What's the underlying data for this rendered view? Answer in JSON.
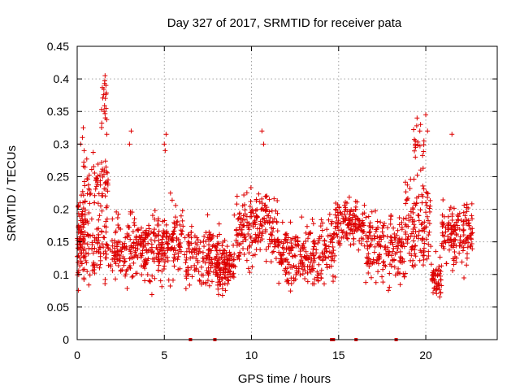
{
  "chart_data": {
    "type": "scatter",
    "title": "Day 327 of 2017, SRMTID for receiver pata",
    "xlabel": "GPS time / hours",
    "ylabel": "SRMTID / TECUs",
    "xlim": [
      0,
      24.1
    ],
    "ylim": [
      0,
      0.45
    ],
    "xticks": [
      0,
      5,
      10,
      15,
      20
    ],
    "xtick_labels": [
      "0",
      "5",
      "10",
      "15",
      "20"
    ],
    "yticks": [
      0,
      0.05,
      0.1,
      0.15,
      0.2,
      0.25,
      0.3,
      0.35,
      0.4,
      0.45
    ],
    "ytick_labels": [
      "0",
      "0.05",
      "0.1",
      "0.15",
      "0.2",
      "0.25",
      "0.3",
      "0.35",
      "0.4",
      "0.45"
    ],
    "grid": true,
    "marker": "plus",
    "color": "#dd0000",
    "series": [
      {
        "name": "SRMTID",
        "density_segments": [
          {
            "x": [
              0.0,
              0.5
            ],
            "y_center": 0.16,
            "y_spread": 0.06,
            "n": 90
          },
          {
            "x": [
              0.3,
              1.8
            ],
            "y_center": 0.24,
            "y_spread": 0.04,
            "n": 70
          },
          {
            "x": [
              1.4,
              1.7
            ],
            "y_center": 0.36,
            "y_spread": 0.03,
            "n": 18
          },
          {
            "x": [
              0.5,
              2.0
            ],
            "y_center": 0.14,
            "y_spread": 0.05,
            "n": 80
          },
          {
            "x": [
              2.0,
              5.0
            ],
            "y_center": 0.14,
            "y_spread": 0.045,
            "n": 260
          },
          {
            "x": [
              5.0,
              6.2
            ],
            "y_center": 0.15,
            "y_spread": 0.05,
            "n": 90
          },
          {
            "x": [
              6.2,
              8.2
            ],
            "y_center": 0.13,
            "y_spread": 0.04,
            "n": 150
          },
          {
            "x": [
              8.0,
              9.0
            ],
            "y_center": 0.11,
            "y_spread": 0.03,
            "n": 110
          },
          {
            "x": [
              9.0,
              11.5
            ],
            "y_center": 0.17,
            "y_spread": 0.05,
            "n": 200
          },
          {
            "x": [
              11.5,
              14.0
            ],
            "y_center": 0.13,
            "y_spread": 0.04,
            "n": 200
          },
          {
            "x": [
              14.0,
              14.8
            ],
            "y_center": 0.14,
            "y_spread": 0.045,
            "n": 60
          },
          {
            "x": [
              14.8,
              16.5
            ],
            "y_center": 0.18,
            "y_spread": 0.03,
            "n": 140
          },
          {
            "x": [
              16.5,
              18.8
            ],
            "y_center": 0.14,
            "y_spread": 0.045,
            "n": 170
          },
          {
            "x": [
              18.8,
              20.3
            ],
            "y_center": 0.18,
            "y_spread": 0.06,
            "n": 120
          },
          {
            "x": [
              19.3,
              19.9
            ],
            "y_center": 0.3,
            "y_spread": 0.03,
            "n": 20
          },
          {
            "x": [
              20.3,
              20.9
            ],
            "y_center": 0.09,
            "y_spread": 0.03,
            "n": 50
          },
          {
            "x": [
              20.9,
              22.7
            ],
            "y_center": 0.16,
            "y_spread": 0.045,
            "n": 150
          }
        ],
        "outliers": [
          [
            0.2,
            0.3
          ],
          [
            0.3,
            0.31
          ],
          [
            0.35,
            0.325
          ],
          [
            0.4,
            0.29
          ],
          [
            1.6,
            0.405
          ],
          [
            1.65,
            0.39
          ],
          [
            1.7,
            0.315
          ],
          [
            3.1,
            0.32
          ],
          [
            3.0,
            0.3
          ],
          [
            5.0,
            0.3
          ],
          [
            5.1,
            0.315
          ],
          [
            5.05,
            0.29
          ],
          [
            10.6,
            0.32
          ],
          [
            10.7,
            0.3
          ],
          [
            19.5,
            0.34
          ],
          [
            19.7,
            0.33
          ],
          [
            20.0,
            0.345
          ],
          [
            20.1,
            0.32
          ],
          [
            21.5,
            0.315
          ]
        ],
        "zero_values_x": [
          6.5,
          7.9,
          14.6,
          14.7,
          16.0,
          18.3
        ]
      }
    ]
  }
}
